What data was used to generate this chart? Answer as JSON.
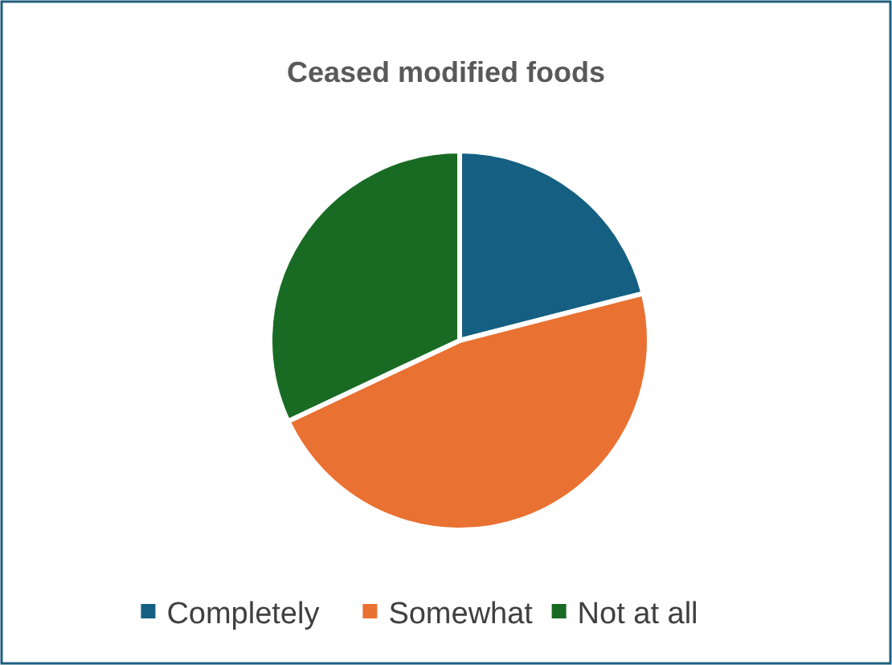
{
  "chart_data": {
    "type": "pie",
    "title": "Ceased modified foods",
    "categories": [
      "Completely",
      "Somewhat",
      "Not at all"
    ],
    "values": [
      21,
      47,
      32
    ],
    "colors": [
      "#156082",
      "#e97132",
      "#196b24"
    ],
    "legend": "bottom"
  }
}
